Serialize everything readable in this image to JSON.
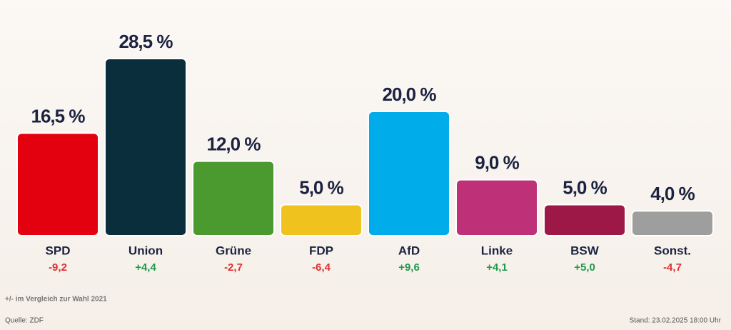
{
  "chart_data": {
    "type": "bar",
    "categories": [
      "SPD",
      "Union",
      "Grüne",
      "FDP",
      "AfD",
      "Linke",
      "BSW",
      "Sonst."
    ],
    "values": [
      16.5,
      28.5,
      12.0,
      5.0,
      20.0,
      9.0,
      5.0,
      4.0
    ],
    "value_labels": [
      "16,5 %",
      "28,5 %",
      "12,0 %",
      "5,0 %",
      "20,0 %",
      "9,0 %",
      "5,0 %",
      "4,0 %"
    ],
    "colors": [
      "#e3000f",
      "#0a2e3c",
      "#4a9a2f",
      "#f0c21e",
      "#00adea",
      "#be3077",
      "#9d1846",
      "#9e9e9e"
    ],
    "changes": [
      -9.2,
      4.4,
      -2.7,
      -6.4,
      9.6,
      4.1,
      5.0,
      -4.7
    ],
    "change_labels": [
      "-9,2",
      "+4,4",
      "-2,7",
      "-6,4",
      "+9,6",
      "+4,1",
      "+5,0",
      "-4,7"
    ],
    "note": "+/- im Vergleich zur Wahl 2021",
    "source": "Quelle: ZDF",
    "timestamp": "Stand: 23.02.2025 18:00 Uhr"
  }
}
